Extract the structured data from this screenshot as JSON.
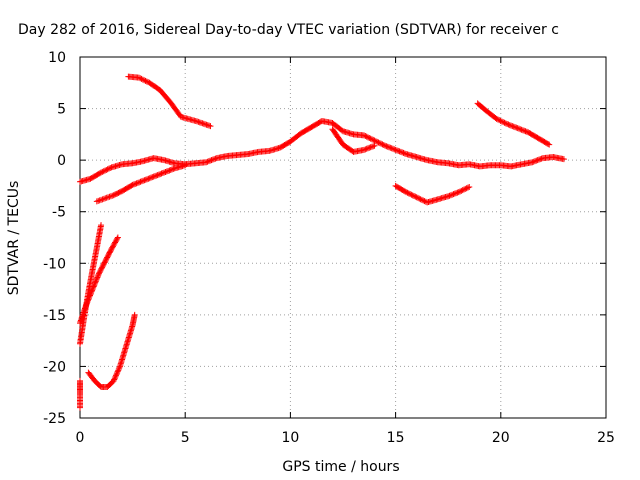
{
  "chart_data": {
    "type": "scatter",
    "title": "Day 282 of 2016, Sidereal Day-to-day VTEC variation (SDTVAR) for receiver c",
    "xlabel": "GPS time / hours",
    "ylabel": "SDTVAR / TECUs",
    "xlim": [
      0,
      25
    ],
    "ylim": [
      -25,
      10
    ],
    "x_ticks": [
      0,
      5,
      10,
      15,
      20,
      25
    ],
    "y_ticks": [
      -25,
      -20,
      -15,
      -10,
      -5,
      0,
      5,
      10
    ],
    "grid": true,
    "marker": "plus",
    "color": "#ff0000",
    "series": [
      {
        "points": [
          [
            2.3,
            8.1
          ],
          [
            2.8,
            8.0
          ],
          [
            3.3,
            7.5
          ],
          [
            3.8,
            6.8
          ],
          [
            4.3,
            5.6
          ],
          [
            4.8,
            4.2
          ],
          [
            5.5,
            3.8
          ],
          [
            6.2,
            3.3
          ]
        ]
      },
      {
        "points": [
          [
            0,
            -2.1
          ],
          [
            0.5,
            -1.8
          ],
          [
            1.0,
            -1.2
          ],
          [
            1.5,
            -0.7
          ],
          [
            2.0,
            -0.4
          ],
          [
            2.5,
            -0.3
          ],
          [
            3.0,
            -0.1
          ],
          [
            3.5,
            0.2
          ],
          [
            4.0,
            0.0
          ],
          [
            4.5,
            -0.3
          ],
          [
            5.0,
            -0.4
          ],
          [
            5.5,
            -0.3
          ],
          [
            6.0,
            -0.2
          ],
          [
            6.5,
            0.2
          ],
          [
            7.0,
            0.4
          ],
          [
            7.5,
            0.5
          ],
          [
            8.0,
            0.6
          ],
          [
            8.5,
            0.8
          ],
          [
            9.0,
            0.9
          ],
          [
            9.5,
            1.2
          ],
          [
            10.0,
            1.8
          ],
          [
            10.5,
            2.6
          ],
          [
            11.0,
            3.2
          ],
          [
            11.5,
            3.8
          ],
          [
            12.0,
            3.6
          ],
          [
            12.5,
            2.8
          ],
          [
            13.0,
            2.5
          ],
          [
            13.5,
            2.4
          ],
          [
            14.0,
            1.9
          ],
          [
            14.5,
            1.4
          ],
          [
            15.0,
            1.0
          ],
          [
            15.5,
            0.6
          ],
          [
            16.0,
            0.3
          ],
          [
            16.5,
            0.0
          ],
          [
            17.0,
            -0.2
          ],
          [
            17.5,
            -0.3
          ],
          [
            18.0,
            -0.5
          ],
          [
            18.5,
            -0.4
          ],
          [
            19.0,
            -0.6
          ],
          [
            19.5,
            -0.5
          ],
          [
            20.0,
            -0.5
          ],
          [
            20.5,
            -0.6
          ],
          [
            21.0,
            -0.4
          ],
          [
            21.5,
            -0.2
          ],
          [
            22.0,
            0.2
          ],
          [
            22.5,
            0.3
          ],
          [
            23.0,
            0.1
          ]
        ]
      },
      {
        "points": [
          [
            0.8,
            -4.0
          ],
          [
            1.2,
            -3.7
          ],
          [
            1.6,
            -3.4
          ],
          [
            2.0,
            -3.0
          ],
          [
            2.5,
            -2.4
          ],
          [
            3.0,
            -2.0
          ],
          [
            3.5,
            -1.6
          ],
          [
            4.0,
            -1.2
          ],
          [
            4.5,
            -0.8
          ],
          [
            5.0,
            -0.5
          ]
        ]
      },
      {
        "points": [
          [
            12.0,
            3.0
          ],
          [
            12.5,
            1.5
          ],
          [
            13.0,
            0.8
          ],
          [
            13.5,
            1.0
          ],
          [
            14.0,
            1.4
          ]
        ]
      },
      {
        "points": [
          [
            15.0,
            -2.5
          ],
          [
            15.5,
            -3.1
          ],
          [
            16.0,
            -3.6
          ],
          [
            16.5,
            -4.1
          ],
          [
            17.0,
            -3.8
          ],
          [
            17.5,
            -3.5
          ],
          [
            18.0,
            -3.1
          ],
          [
            18.5,
            -2.6
          ]
        ]
      },
      {
        "points": [
          [
            18.9,
            5.5
          ],
          [
            19.3,
            4.8
          ],
          [
            19.8,
            4.0
          ],
          [
            20.3,
            3.5
          ],
          [
            20.8,
            3.1
          ],
          [
            21.3,
            2.7
          ],
          [
            21.8,
            2.1
          ],
          [
            22.3,
            1.5
          ]
        ]
      },
      {
        "points": [
          [
            0.0,
            -17.8
          ],
          [
            0.2,
            -15.2
          ],
          [
            0.4,
            -12.8
          ],
          [
            0.6,
            -10.6
          ],
          [
            0.8,
            -8.5
          ],
          [
            1.0,
            -6.3
          ]
        ]
      },
      {
        "points": [
          [
            0.0,
            -15.8
          ],
          [
            0.3,
            -14.0
          ],
          [
            0.6,
            -12.5
          ],
          [
            0.9,
            -11.0
          ],
          [
            1.2,
            -9.8
          ],
          [
            1.5,
            -8.6
          ],
          [
            1.8,
            -7.5
          ]
        ]
      },
      {
        "points": [
          [
            0.4,
            -20.6
          ],
          [
            0.7,
            -21.4
          ],
          [
            1.0,
            -22.0
          ],
          [
            1.3,
            -22.0
          ],
          [
            1.6,
            -21.4
          ],
          [
            1.9,
            -20.0
          ],
          [
            2.2,
            -18.0
          ],
          [
            2.5,
            -16.0
          ],
          [
            2.6,
            -15.0
          ]
        ]
      },
      {
        "points": [
          [
            0.0,
            -24.0
          ],
          [
            0.0,
            -23.3
          ],
          [
            0.0,
            -22.6
          ],
          [
            0.0,
            -22.0
          ],
          [
            0.0,
            -21.4
          ]
        ]
      }
    ]
  }
}
